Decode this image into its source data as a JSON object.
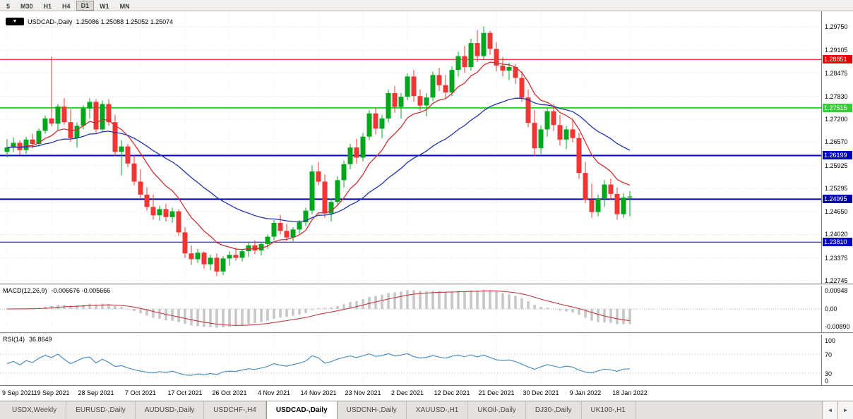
{
  "toolbar": {
    "periods": [
      "5",
      "M30",
      "H1",
      "H4",
      "D1",
      "W1",
      "MN"
    ],
    "active_period": "D1"
  },
  "chart": {
    "title_symbol": "USDCAD-,Daily",
    "title_quote": "1.25086 1.25088 1.25052 1.25074",
    "collapse_icon": "▼"
  },
  "chart_data": {
    "type": "candlestick",
    "symbol": "USDCAD-",
    "timeframe": "Daily",
    "quote_ohlc": [
      "1.25086",
      "1.25088",
      "1.25052",
      "1.25074"
    ],
    "up_color": "#00A71D",
    "down_color": "#F03535",
    "y_axis": {
      "labels": [
        "1.29750",
        "1.29105",
        "1.28475",
        "1.27830",
        "1.27200",
        "1.26570",
        "1.25925",
        "1.25295",
        "1.24650",
        "1.24020",
        "1.23375",
        "1.22745"
      ],
      "top_price": 1.2975,
      "bottom_price": 1.22745
    },
    "hlines": [
      {
        "price": 1.28851,
        "label": "1.28851",
        "color": "#E80000",
        "width": 1
      },
      {
        "price": 1.27515,
        "label": "1.27515",
        "color": "#35CE35",
        "width": 2
      },
      {
        "price": 1.26199,
        "label": "1.26199",
        "color": "#0000C0",
        "width": 2
      },
      {
        "price": 1.24995,
        "label": "1.24995",
        "color": "#0000A8",
        "width": 2
      },
      {
        "price": 1.2381,
        "label": "1.23810",
        "color": "#0000C0",
        "width": 1
      }
    ],
    "date_labels": [
      "9 Sep 2021",
      "19 Sep 2021",
      "28 Sep 2021",
      "7 Oct 2021",
      "17 Oct 2021",
      "26 Oct 2021",
      "4 Nov 2021",
      "14 Nov 2021",
      "23 Nov 2021",
      "2 Dec 2021",
      "12 Dec 2021",
      "21 Dec 2021",
      "30 Dec 2021",
      "9 Jan 2022",
      "18 Jan 2022"
    ],
    "label_every": 7,
    "ma": [
      {
        "period": 10,
        "color": "#CC3030"
      },
      {
        "period": 30,
        "color": "#2233AA"
      }
    ],
    "macd": {
      "label": "MACD(12,26,9)",
      "value_text": "-0.006676 -0.005666",
      "axis_labels": [
        "0.00948",
        "0.00",
        "-0.00890"
      ],
      "fast": 12,
      "slow": 26,
      "signal": 9,
      "hist_color": "#C6C6C6",
      "line_color": "#C03A3A"
    },
    "rsi": {
      "label": "RSI(14)",
      "value_text": "36.8649",
      "axis_labels": [
        "100",
        "70",
        "30",
        "0"
      ],
      "axis_values": [
        100,
        70,
        30,
        0
      ],
      "period": 14,
      "levels": [
        70,
        30
      ],
      "color": "#4F8FC0"
    },
    "candles": [
      [
        1.263,
        1.2665,
        1.2615,
        1.2642
      ],
      [
        1.2642,
        1.267,
        1.2628,
        1.2655
      ],
      [
        1.2655,
        1.2662,
        1.2622,
        1.2635
      ],
      [
        1.2635,
        1.2672,
        1.2625,
        1.2664
      ],
      [
        1.2664,
        1.268,
        1.264,
        1.2652
      ],
      [
        1.2652,
        1.2695,
        1.2645,
        1.2688
      ],
      [
        1.2688,
        1.273,
        1.268,
        1.2722
      ],
      [
        1.2722,
        1.2893,
        1.27,
        1.2708
      ],
      [
        1.2708,
        1.2762,
        1.2688,
        1.2755
      ],
      [
        1.2755,
        1.2778,
        1.2705,
        1.2712
      ],
      [
        1.2712,
        1.2748,
        1.2658,
        1.2668
      ],
      [
        1.2668,
        1.2712,
        1.2642,
        1.2702
      ],
      [
        1.2702,
        1.2758,
        1.2692,
        1.275
      ],
      [
        1.275,
        1.2778,
        1.2722,
        1.2768
      ],
      [
        1.2768,
        1.2775,
        1.2682,
        1.2692
      ],
      [
        1.2692,
        1.2772,
        1.2685,
        1.2762
      ],
      [
        1.2762,
        1.2775,
        1.2702,
        1.2712
      ],
      [
        1.2712,
        1.2732,
        1.2618,
        1.263
      ],
      [
        1.263,
        1.2662,
        1.2565,
        1.2645
      ],
      [
        1.2645,
        1.2652,
        1.2588,
        1.2598
      ],
      [
        1.2598,
        1.2622,
        1.2538,
        1.2548
      ],
      [
        1.2548,
        1.2582,
        1.2502,
        1.2512
      ],
      [
        1.2512,
        1.2532,
        1.2468,
        1.2478
      ],
      [
        1.2478,
        1.2512,
        1.2443,
        1.2455
      ],
      [
        1.2455,
        1.2482,
        1.244,
        1.2472
      ],
      [
        1.2472,
        1.2486,
        1.2438,
        1.245
      ],
      [
        1.245,
        1.2476,
        1.2434,
        1.2466
      ],
      [
        1.2466,
        1.2472,
        1.2398,
        1.2408
      ],
      [
        1.2408,
        1.2422,
        1.2338,
        1.235
      ],
      [
        1.235,
        1.2372,
        1.2318,
        1.2334
      ],
      [
        1.2334,
        1.2362,
        1.2324,
        1.2352
      ],
      [
        1.2352,
        1.2356,
        1.2308,
        1.232
      ],
      [
        1.232,
        1.2346,
        1.2304,
        1.2338
      ],
      [
        1.2338,
        1.235,
        1.2288,
        1.23
      ],
      [
        1.23,
        1.2342,
        1.229,
        1.2336
      ],
      [
        1.2336,
        1.2356,
        1.2316,
        1.2346
      ],
      [
        1.2346,
        1.2366,
        1.233,
        1.2338
      ],
      [
        1.2338,
        1.2362,
        1.2328,
        1.2356
      ],
      [
        1.2356,
        1.2382,
        1.234,
        1.2372
      ],
      [
        1.2372,
        1.2386,
        1.2348,
        1.2358
      ],
      [
        1.2358,
        1.2382,
        1.2344,
        1.2376
      ],
      [
        1.2376,
        1.2402,
        1.2362,
        1.2396
      ],
      [
        1.2396,
        1.2442,
        1.2386,
        1.2434
      ],
      [
        1.2434,
        1.2456,
        1.2402,
        1.2412
      ],
      [
        1.2412,
        1.2432,
        1.2384,
        1.2394
      ],
      [
        1.2394,
        1.2422,
        1.238,
        1.2416
      ],
      [
        1.2416,
        1.2442,
        1.2404,
        1.2436
      ],
      [
        1.2436,
        1.2476,
        1.2426,
        1.2468
      ],
      [
        1.2468,
        1.2592,
        1.2458,
        1.2576
      ],
      [
        1.2576,
        1.2602,
        1.2538,
        1.2548
      ],
      [
        1.2548,
        1.2568,
        1.2448,
        1.246
      ],
      [
        1.246,
        1.2502,
        1.2438,
        1.2492
      ],
      [
        1.2492,
        1.2562,
        1.2482,
        1.2552
      ],
      [
        1.2552,
        1.2606,
        1.2532,
        1.2596
      ],
      [
        1.2596,
        1.2652,
        1.2582,
        1.2642
      ],
      [
        1.2642,
        1.2666,
        1.2598,
        1.2614
      ],
      [
        1.2614,
        1.2682,
        1.2604,
        1.2672
      ],
      [
        1.2672,
        1.2746,
        1.2662,
        1.2736
      ],
      [
        1.2736,
        1.2752,
        1.2678,
        1.2694
      ],
      [
        1.2694,
        1.2732,
        1.2668,
        1.2722
      ],
      [
        1.2722,
        1.2802,
        1.2712,
        1.2792
      ],
      [
        1.2792,
        1.2812,
        1.2738,
        1.2754
      ],
      [
        1.2754,
        1.2792,
        1.2722,
        1.2782
      ],
      [
        1.2782,
        1.2846,
        1.2772,
        1.2838
      ],
      [
        1.2838,
        1.2856,
        1.2768,
        1.2784
      ],
      [
        1.2784,
        1.2802,
        1.2744,
        1.2758
      ],
      [
        1.2758,
        1.2792,
        1.2728,
        1.278
      ],
      [
        1.278,
        1.2852,
        1.277,
        1.2842
      ],
      [
        1.2842,
        1.2862,
        1.2798,
        1.2814
      ],
      [
        1.2814,
        1.2842,
        1.2778,
        1.2794
      ],
      [
        1.2794,
        1.2866,
        1.2784,
        1.2856
      ],
      [
        1.2856,
        1.2906,
        1.2838,
        1.2894
      ],
      [
        1.2894,
        1.2922,
        1.2848,
        1.2864
      ],
      [
        1.2864,
        1.2942,
        1.2854,
        1.293
      ],
      [
        1.293,
        1.2966,
        1.2878,
        1.2894
      ],
      [
        1.2894,
        1.2976,
        1.2884,
        1.2958
      ],
      [
        1.2958,
        1.2964,
        1.2898,
        1.2914
      ],
      [
        1.2914,
        1.2932,
        1.2852,
        1.2868
      ],
      [
        1.2868,
        1.2892,
        1.2838,
        1.2854
      ],
      [
        1.2854,
        1.2876,
        1.2828,
        1.2864
      ],
      [
        1.2864,
        1.2872,
        1.2818,
        1.2834
      ],
      [
        1.2834,
        1.2852,
        1.2768,
        1.278
      ],
      [
        1.278,
        1.2802,
        1.2698,
        1.271
      ],
      [
        1.271,
        1.2746,
        1.2618,
        1.264
      ],
      [
        1.264,
        1.2702,
        1.2624,
        1.2692
      ],
      [
        1.2692,
        1.2752,
        1.2672,
        1.2742
      ],
      [
        1.2742,
        1.2762,
        1.2688,
        1.2704
      ],
      [
        1.2704,
        1.2732,
        1.2648,
        1.2664
      ],
      [
        1.2664,
        1.2702,
        1.2638,
        1.2692
      ],
      [
        1.2692,
        1.2718,
        1.2656,
        1.2668
      ],
      [
        1.2668,
        1.2682,
        1.2556,
        1.2572
      ],
      [
        1.2572,
        1.2602,
        1.2488,
        1.2498
      ],
      [
        1.2498,
        1.2542,
        1.2448,
        1.2464
      ],
      [
        1.2464,
        1.2512,
        1.2452,
        1.2502
      ],
      [
        1.2502,
        1.2552,
        1.2478,
        1.254
      ],
      [
        1.254,
        1.2556,
        1.2498,
        1.2514
      ],
      [
        1.2514,
        1.2532,
        1.2443,
        1.2458
      ],
      [
        1.2458,
        1.2516,
        1.2448,
        1.2504
      ],
      [
        1.2504,
        1.2522,
        1.2452,
        1.2507
      ]
    ]
  },
  "tabs": {
    "items": [
      "USDX,Weekly",
      "EURUSD-,Daily",
      "AUDUSD-,Daily",
      "USDCHF-,H4",
      "USDCAD-,Daily",
      "USDCNH-,Daily",
      "XAUUSD-,H1",
      "UKOil-,Daily",
      "DJ30-,Daily",
      "UK100-,H1"
    ],
    "active": "USDCAD-,Daily",
    "scroll_left_icon": "◄",
    "scroll_right_icon": "►"
  }
}
